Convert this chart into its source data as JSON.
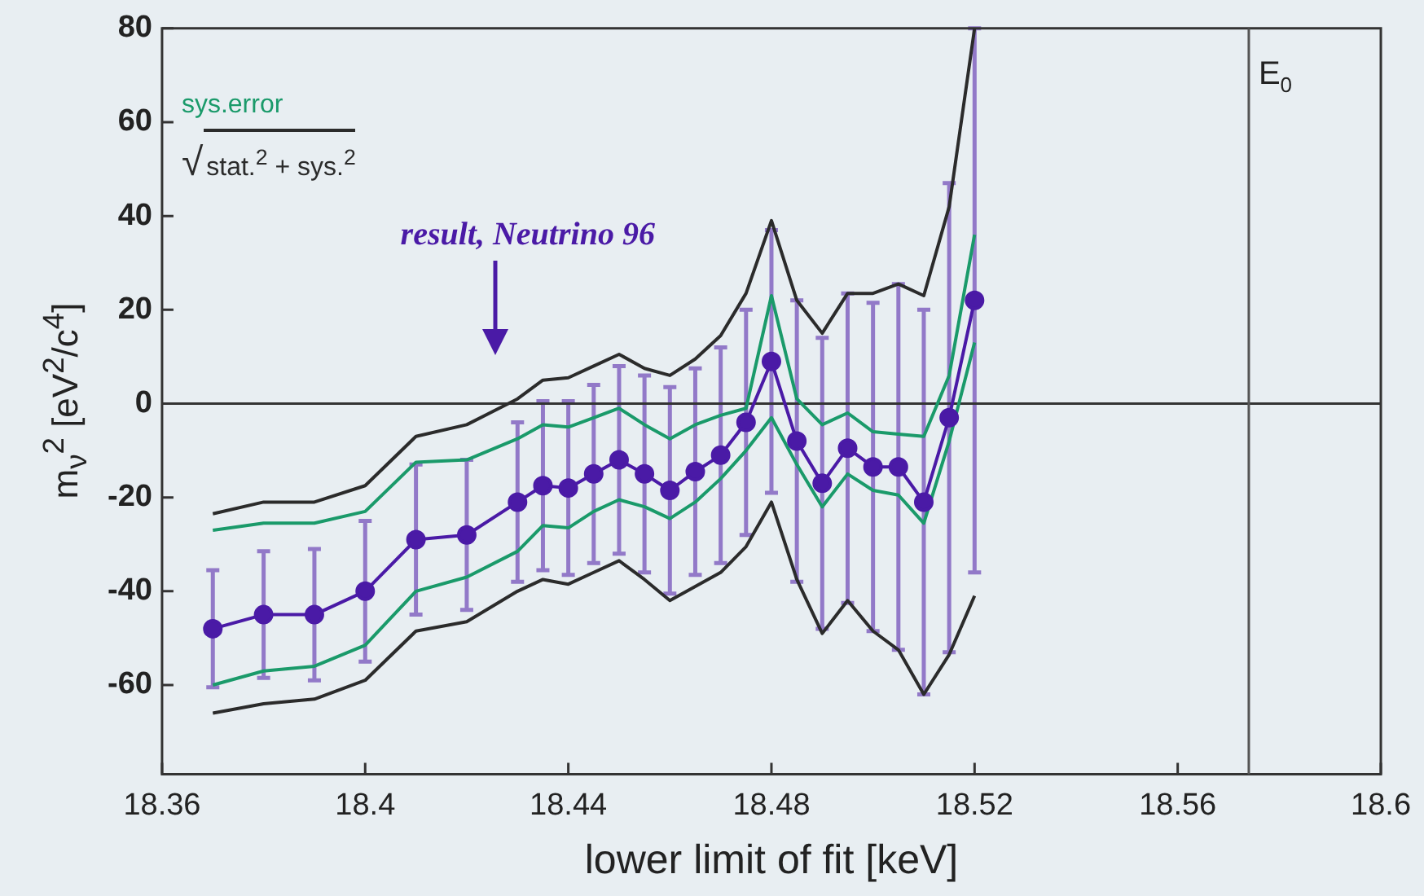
{
  "chart_data": {
    "type": "line",
    "xlabel": "lower limit of fit [keV]",
    "ylabel": "m$_{ν}$$^{2}$ [eV$^{2}$/c$^{4}$]",
    "x": [
      18.37,
      18.38,
      18.39,
      18.4,
      18.41,
      18.42,
      18.43,
      18.435,
      18.44,
      18.445,
      18.45,
      18.455,
      18.46,
      18.465,
      18.47,
      18.475,
      18.48,
      18.485,
      18.49,
      18.495,
      18.5,
      18.505,
      18.51,
      18.515,
      18.52
    ],
    "series": [
      {
        "color": "#4a1aa6",
        "marker": "circle",
        "values": [
          -48,
          -45,
          -45,
          -40,
          -29,
          -28,
          -21,
          -17.5,
          -18,
          -15,
          -12,
          -15,
          -18.5,
          -14.5,
          -11,
          -4,
          9,
          -8,
          -17,
          -9.5,
          -13.5,
          -13.5,
          -21,
          -3,
          22
        ],
        "errors": [
          12.5,
          13.5,
          14,
          15,
          16,
          16,
          17,
          18,
          18.5,
          19,
          20,
          21,
          22,
          22,
          23,
          24,
          28,
          30,
          31,
          33,
          35,
          39,
          41,
          50,
          58
        ]
      },
      {
        "name": "sys.error",
        "color": "#1a9a6a",
        "marker": "none",
        "values": [
          -27,
          -25.5,
          -25.5,
          -23,
          -12.5,
          -12,
          -7.5,
          -4.5,
          -5,
          -3,
          -1,
          -4.5,
          -7.5,
          -4.5,
          -2.5,
          -1,
          23,
          1,
          -4.5,
          -2,
          -6,
          -6.5,
          -7,
          6,
          36
        ]
      },
      {
        "color": "#1a9a6a",
        "marker": "none",
        "values": [
          -60,
          -57,
          -56,
          -51.5,
          -40,
          -37,
          -31.5,
          -26,
          -26.5,
          -23,
          -20.5,
          -22,
          -24.5,
          -21,
          -16,
          -10,
          -3,
          -13,
          -22,
          -15,
          -18.5,
          -19.5,
          -25.5,
          -8,
          13
        ]
      },
      {
        "name": "√stat.$^{2}$ + sys.$^{2}$",
        "color": "#2b2b2b",
        "marker": "none",
        "values": [
          -23.5,
          -21,
          -21,
          -17.5,
          -7,
          -4.5,
          1,
          5,
          5.5,
          8,
          10.5,
          7.5,
          6,
          9.5,
          14.5,
          23.5,
          39,
          22,
          15,
          23.5,
          23.5,
          25.5,
          23,
          42,
          80
        ]
      },
      {
        "color": "#2b2b2b",
        "marker": "none",
        "values": [
          -66,
          -64,
          -63,
          -59,
          -48.5,
          -46.5,
          -40,
          -37.5,
          -38.5,
          -36,
          -33.5,
          -37.5,
          -42,
          -39,
          -36,
          -30.5,
          -21,
          -37.5,
          -49,
          -42,
          -48.5,
          -52.5,
          -62,
          -53.5,
          -41
        ]
      }
    ],
    "xlim": [
      18.36,
      18.6
    ],
    "xticks": [
      18.36,
      18.4,
      18.44,
      18.48,
      18.52,
      18.56,
      18.6
    ],
    "ylim": [
      -79,
      80
    ],
    "yticks": [
      -60,
      -40,
      -20,
      0,
      20,
      40,
      60,
      80
    ],
    "ref_lines": [
      {
        "axis": "y",
        "value": 0,
        "color": "#333333"
      },
      {
        "axis": "x",
        "value": 18.574,
        "label": "E$_{0}$",
        "color": "#555555"
      }
    ],
    "annotations": [
      "result, Neutrino 96"
    ],
    "legend": "top left"
  }
}
